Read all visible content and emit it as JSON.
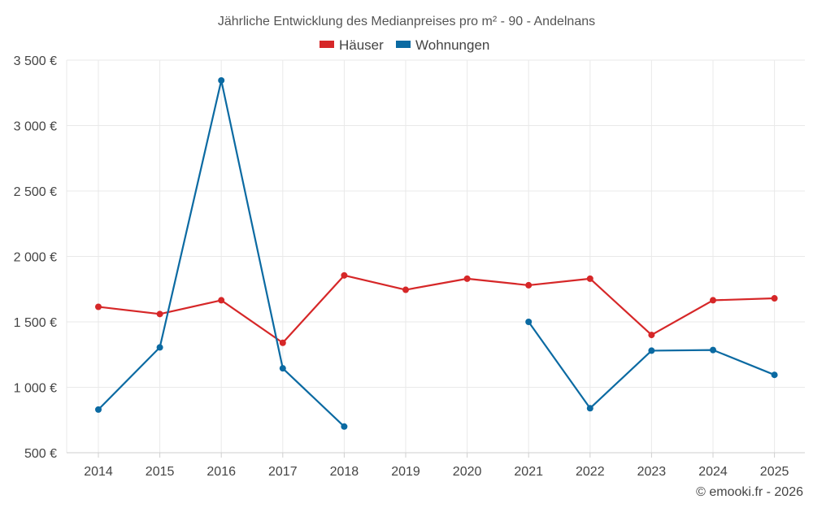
{
  "chart_data": {
    "type": "line",
    "title": "Jährliche Entwicklung des Medianpreises pro m² - 90 - Andelnans",
    "categories": [
      "2014",
      "2015",
      "2016",
      "2017",
      "2018",
      "2019",
      "2020",
      "2021",
      "2022",
      "2023",
      "2024",
      "2025"
    ],
    "y_ticks": [
      "500 €",
      "1 000 €",
      "1 500 €",
      "2 000 €",
      "2 500 €",
      "3 000 €",
      "3 500 €"
    ],
    "ylim": [
      500,
      3500
    ],
    "legend_position": "top-center",
    "series": [
      {
        "name": "Häuser",
        "color": "#d62728",
        "values": [
          1615,
          1560,
          1665,
          1340,
          1855,
          1745,
          1830,
          1780,
          1830,
          1400,
          1665,
          1680
        ]
      },
      {
        "name": "Wohnungen",
        "color": "#0b6aa2",
        "values": [
          830,
          1305,
          3345,
          1145,
          700,
          null,
          null,
          1500,
          840,
          1280,
          1285,
          1095
        ]
      }
    ],
    "credit": "© emooki.fr - 2026"
  }
}
